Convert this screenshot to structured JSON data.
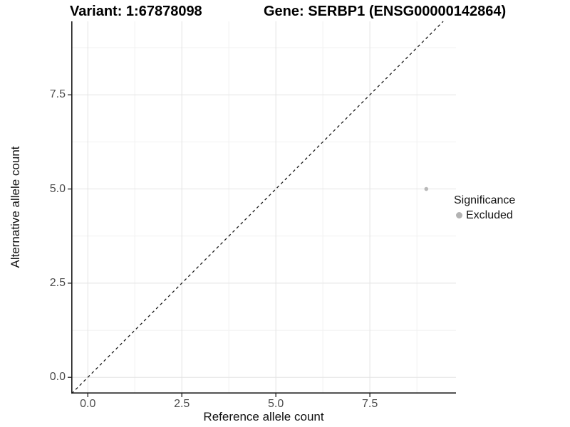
{
  "chart_data": {
    "type": "scatter",
    "titles": {
      "left": "Variant: 1:67878098",
      "right": "Gene: SERBP1 (ENSG00000142864)"
    },
    "xlabel": "Reference allele count",
    "ylabel": "Alternative allele count",
    "xlim": [
      -0.44,
      9.79
    ],
    "ylim": [
      -0.43,
      9.45
    ],
    "xticks": [
      0,
      2.5,
      5,
      7.5
    ],
    "yticks": [
      0,
      2.5,
      5,
      7.5
    ],
    "minor_ticks_x": [
      1.25,
      3.75,
      6.25,
      8.75
    ],
    "minor_ticks_y": [
      1.25,
      3.75,
      6.25,
      8.75
    ],
    "tick_decimals": 1,
    "grid": {
      "major_color": "#e3e3e3",
      "minor_color": "#f1f1f1"
    },
    "axis_line_color": "#1a1a1a",
    "tick_mark_color": "#333333",
    "reference_line": {
      "type": "identity",
      "slope": 1,
      "intercept": 0,
      "style": "dashed",
      "color": "#1a1a1a"
    },
    "series": [
      {
        "name": "Excluded",
        "color": "#b9b9b9",
        "points": [
          {
            "x": 9,
            "y": 5
          }
        ]
      }
    ],
    "legend": {
      "title": "Significance",
      "position": "right",
      "items": [
        {
          "label": "Excluded",
          "color": "#b3b3b3"
        }
      ]
    }
  }
}
